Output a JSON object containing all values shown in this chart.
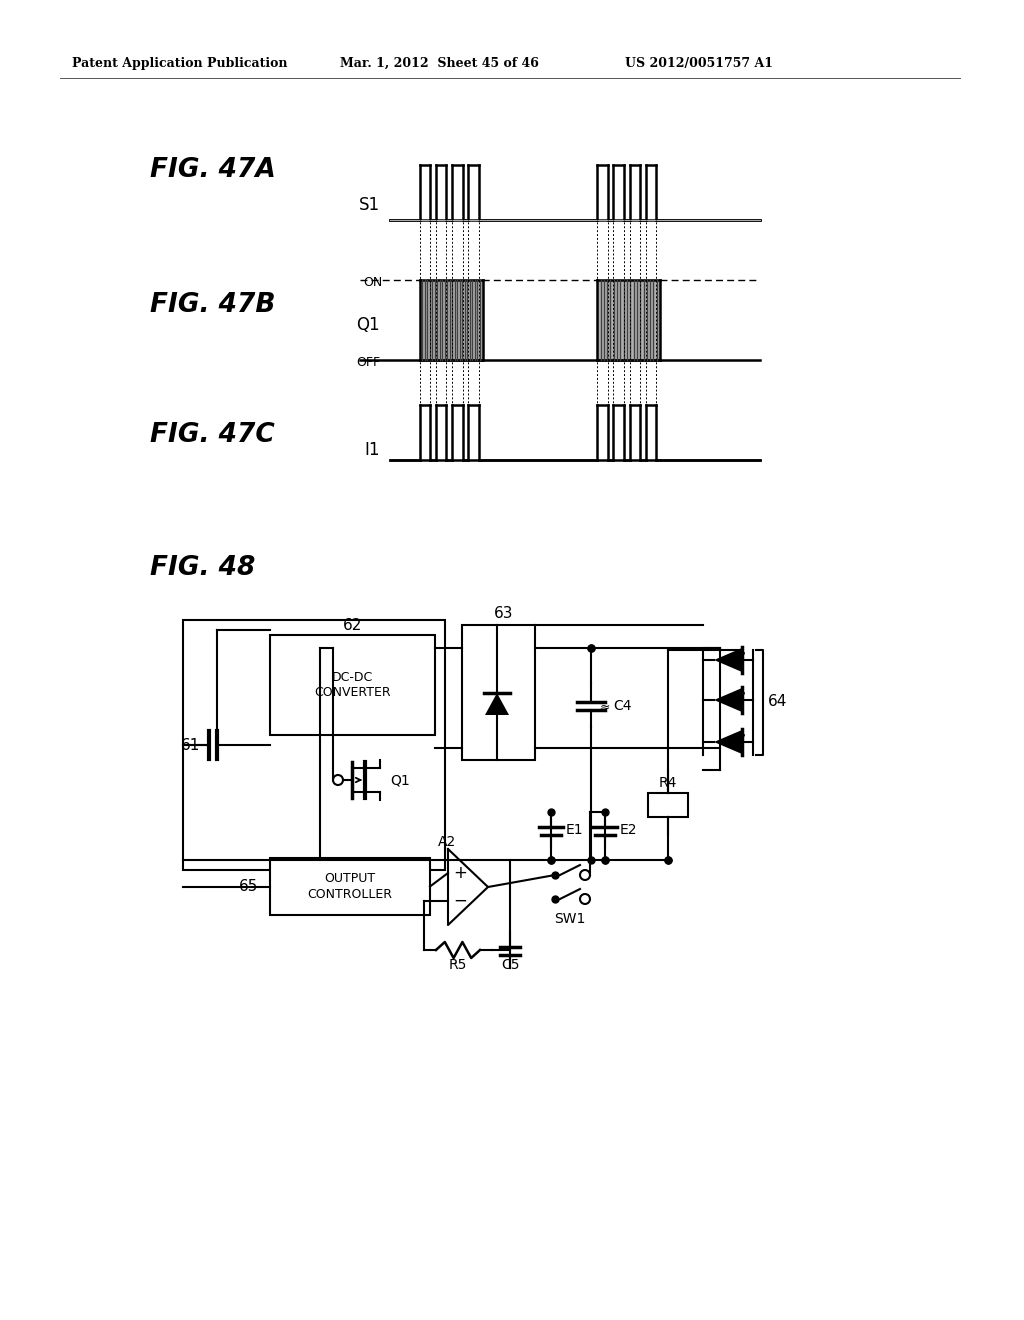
{
  "bg_color": "#ffffff",
  "header_left": "Patent Application Publication",
  "header_center": "Mar. 1, 2012  Sheet 45 of 46",
  "header_right": "US 2012/0051757 A1"
}
